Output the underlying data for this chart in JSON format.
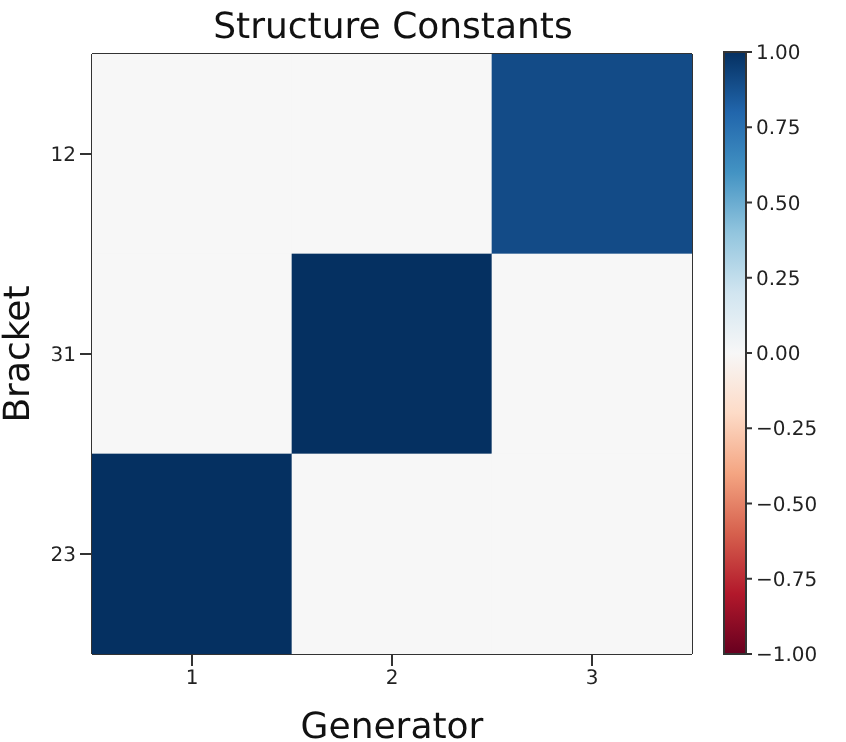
{
  "chart_data": {
    "type": "heatmap",
    "title": "Structure Constants",
    "xlabel": "Generator",
    "ylabel": "Bracket",
    "categories": [
      "1",
      "2",
      "3"
    ],
    "y_categories": [
      "12",
      "31",
      "23"
    ],
    "cells": [
      [
        0,
        0,
        0.9
      ],
      [
        0,
        1,
        0
      ],
      [
        1,
        0,
        0
      ]
    ],
    "clim": [
      -1,
      1
    ],
    "cticks": [
      {
        "value": -1,
        "label": "−1.00"
      },
      {
        "value": -0.75,
        "label": "−0.75"
      },
      {
        "value": -0.5,
        "label": "−0.50"
      },
      {
        "value": -0.25,
        "label": "−0.25"
      },
      {
        "value": 0,
        "label": "0.00"
      },
      {
        "value": 0.25,
        "label": "0.25"
      },
      {
        "value": 0.5,
        "label": "0.50"
      },
      {
        "value": 0.75,
        "label": "0.75"
      },
      {
        "value": 1,
        "label": "1.00"
      }
    ]
  }
}
